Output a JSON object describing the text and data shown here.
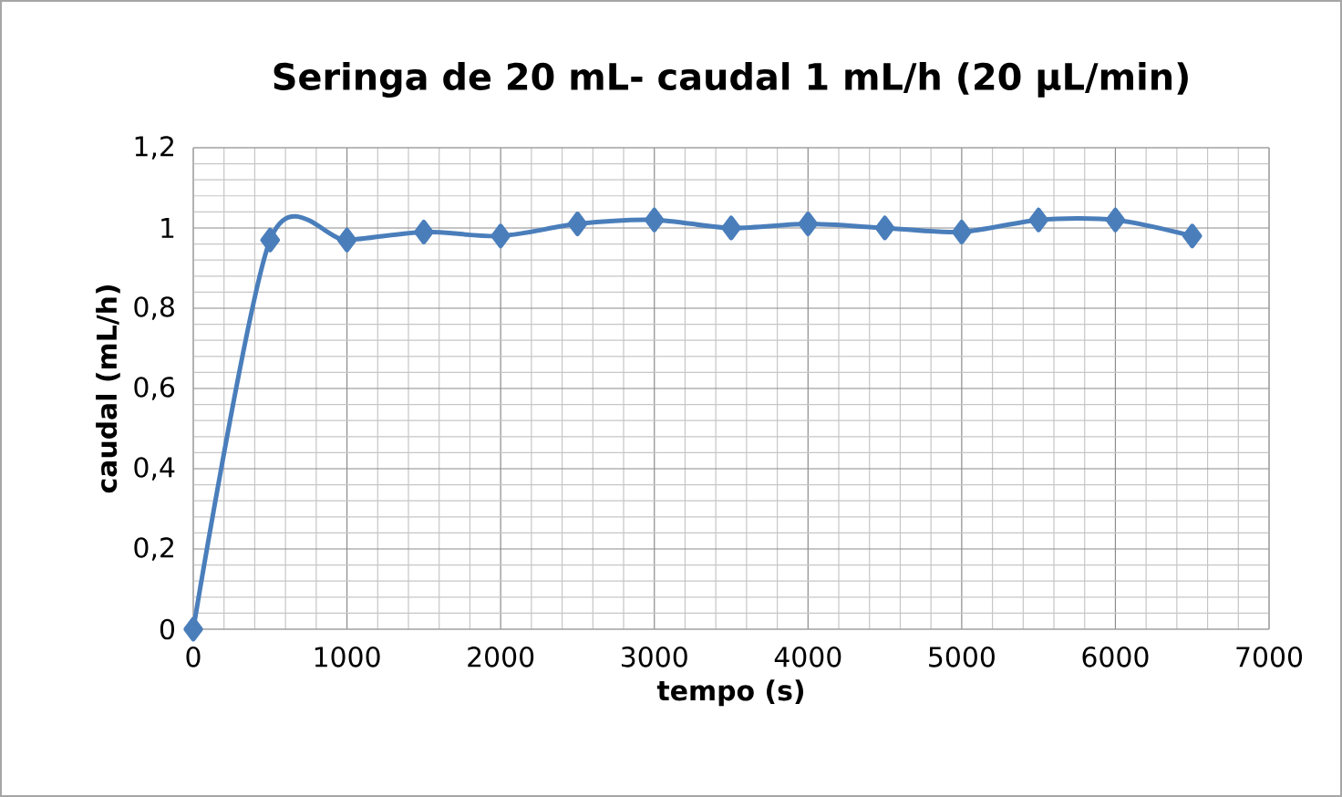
{
  "chart_data": {
    "type": "line",
    "title": "Seringa de 20 mL- caudal 1 mL/h (20 µL/min)",
    "xlabel": "tempo (s)",
    "ylabel": "caudal (mL/h)",
    "x": [
      0,
      500,
      1000,
      1500,
      2000,
      2500,
      3000,
      3500,
      4000,
      4500,
      5000,
      5500,
      6000,
      6500
    ],
    "series": [
      {
        "color": "#4a7ebb",
        "values": [
          0,
          0.97,
          0.97,
          0.99,
          0.98,
          1.01,
          1.02,
          1.0,
          1.01,
          1.0,
          0.99,
          1.02,
          1.02,
          0.98
        ]
      }
    ],
    "xlim": [
      0,
      7000
    ],
    "xticks": [
      0,
      1000,
      2000,
      3000,
      4000,
      5000,
      6000,
      7000
    ],
    "ylim": [
      0,
      1.2
    ],
    "yticks": [
      0,
      {
        "value": 0.2,
        "label": "0,2"
      },
      {
        "value": 0.4,
        "label": "0,4"
      },
      {
        "value": 0.6,
        "label": "0,6"
      },
      {
        "value": 0.8,
        "label": "0,8"
      },
      1,
      {
        "value": 1.2,
        "label": "1,2"
      }
    ],
    "grid": true,
    "marker": "diamond",
    "line_style": "solid"
  }
}
